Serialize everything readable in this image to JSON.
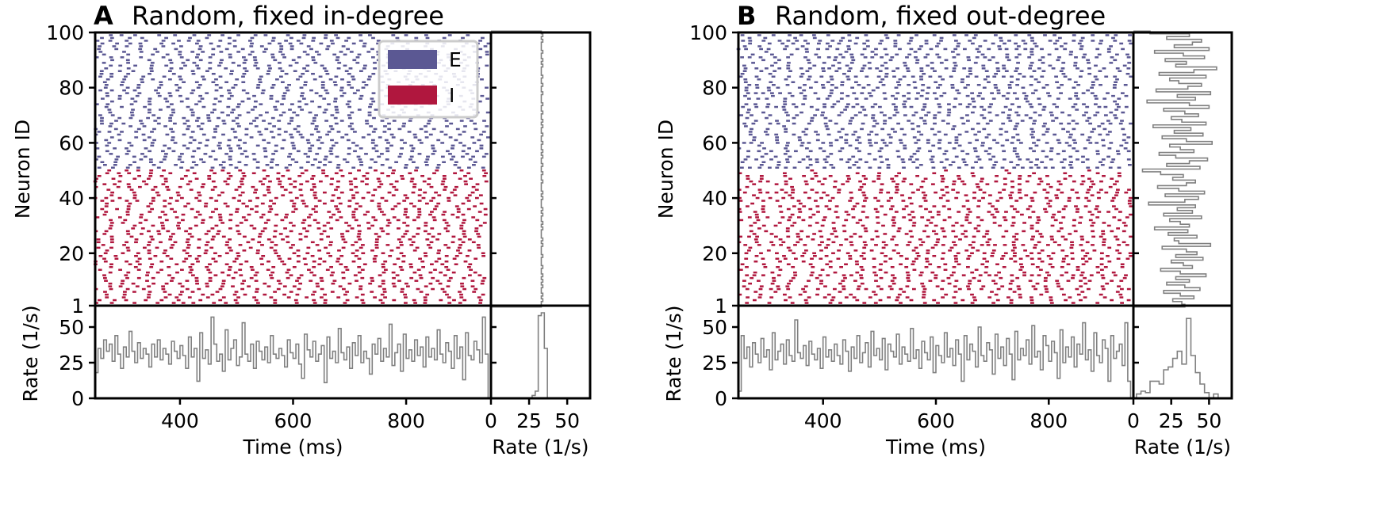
{
  "colors": {
    "E": "#5b5893",
    "I": "#b0173e",
    "hist": "#808080"
  },
  "chart_data": [
    {
      "type": "scatter",
      "letter": "A",
      "title": "Random, fixed in-degree",
      "raster": {
        "xlim": [
          250,
          950
        ],
        "ylim": [
          1,
          100
        ],
        "xticks": [
          "400",
          "600",
          "800"
        ],
        "yticks": [
          "1",
          "20",
          "40",
          "60",
          "80",
          "100"
        ],
        "ylabel": "Neuron ID",
        "populations": [
          {
            "name": "E",
            "neurons": [
              51,
              100
            ]
          },
          {
            "name": "I",
            "neurons": [
              1,
              50
            ]
          }
        ],
        "legend": {
          "entries": [
            "E",
            "I"
          ],
          "placement": "upper-right"
        },
        "marker": "square"
      },
      "rate_by_neuron": {
        "xlim": [
          0,
          65
        ],
        "xticks": [
          "0",
          "25",
          "50"
        ],
        "xlabel": "Rate (1/s)",
        "values": [
          33,
          33,
          34,
          33,
          34,
          33,
          33,
          34,
          33,
          34,
          33,
          34,
          33,
          33,
          34,
          33,
          33,
          33,
          34,
          33,
          33,
          33,
          34,
          33,
          34,
          33,
          33,
          33,
          34,
          33,
          34,
          33,
          33,
          34,
          33,
          34,
          33,
          33,
          33,
          34,
          33,
          34,
          33,
          33,
          33,
          34,
          33,
          33,
          34,
          33,
          33,
          34,
          33,
          33,
          34,
          33,
          34,
          33,
          33,
          34,
          33,
          33,
          34,
          33,
          33,
          34,
          33,
          34,
          33,
          33,
          34,
          33,
          33,
          34,
          33,
          33,
          33,
          34,
          33,
          33,
          34,
          33,
          33,
          34,
          33,
          33,
          33,
          34,
          33,
          34,
          33,
          33,
          34,
          33,
          33,
          33,
          34,
          33,
          34,
          33
        ]
      },
      "rate_over_time": {
        "xlim": [
          250,
          950
        ],
        "ylim": [
          0,
          65
        ],
        "yticks": [
          "0",
          "25",
          "50"
        ],
        "xticks": [
          "400",
          "600",
          "800"
        ],
        "xlabel": "Time (ms)",
        "ylabel": "Rate (1/s)",
        "bin_ms": 5,
        "values": [
          18,
          35,
          28,
          41,
          33,
          38,
          26,
          44,
          31,
          21,
          36,
          29,
          47,
          33,
          25,
          39,
          28,
          35,
          31,
          22,
          38,
          29,
          41,
          27,
          35,
          31,
          24,
          40,
          33,
          28,
          37,
          30,
          21,
          43,
          29,
          35,
          12,
          46,
          28,
          34,
          24,
          57,
          38,
          26,
          31,
          19,
          48,
          27,
          35,
          41,
          23,
          29,
          53,
          31,
          26,
          38,
          21,
          40,
          33,
          27,
          36,
          25,
          44,
          31,
          28,
          35,
          30,
          22,
          41,
          32,
          28,
          38,
          24,
          14,
          45,
          34,
          29,
          40,
          26,
          31,
          37,
          11,
          43,
          28,
          33,
          25,
          49,
          32,
          27,
          36,
          21,
          39,
          30,
          44,
          25,
          33,
          28,
          17,
          38,
          31,
          42,
          26,
          35,
          29,
          52,
          23,
          32,
          38,
          19,
          45,
          28,
          34,
          26,
          41,
          30,
          36,
          22,
          43,
          29,
          35,
          27,
          48,
          31,
          25,
          39,
          33,
          21,
          44,
          28,
          36,
          13,
          46,
          30,
          27,
          40,
          34,
          25,
          57,
          31
        ]
      },
      "rate_distribution": {
        "xlim": [
          0,
          65
        ],
        "ylim": [
          0,
          65
        ],
        "xticks": [
          "0",
          "25",
          "50"
        ],
        "xlabel": "Rate (1/s)",
        "bins": [
          27,
          29,
          31,
          33,
          35,
          37
        ],
        "counts": [
          2,
          5,
          58,
          60,
          35,
          0
        ]
      }
    },
    {
      "type": "scatter",
      "letter": "B",
      "title": "Random, fixed out-degree",
      "raster": {
        "xlim": [
          250,
          950
        ],
        "ylim": [
          1,
          100
        ],
        "xticks": [
          "400",
          "600",
          "800"
        ],
        "yticks": [
          "1",
          "20",
          "40",
          "60",
          "80",
          "100"
        ],
        "ylabel": "Neuron ID",
        "populations": [
          {
            "name": "E",
            "neurons": [
              51,
              100
            ]
          },
          {
            "name": "I",
            "neurons": [
              1,
              50
            ]
          }
        ],
        "marker": "square"
      },
      "rate_by_neuron": {
        "xlim": [
          0,
          65
        ],
        "xticks": [
          "0",
          "25",
          "50"
        ],
        "xlabel": "Rate (1/s)",
        "values": [
          34,
          32,
          26,
          40,
          31,
          20,
          44,
          34,
          22,
          37,
          28,
          48,
          31,
          18,
          39,
          33,
          25,
          46,
          28,
          42,
          35,
          19,
          51,
          30,
          27,
          42,
          23,
          36,
          14,
          37,
          31,
          24,
          45,
          20,
          39,
          29,
          41,
          10,
          34,
          43,
          21,
          47,
          30,
          16,
          35,
          41,
          26,
          33,
          18,
          6,
          44,
          22,
          37,
          49,
          28,
          17,
          40,
          31,
          24,
          52,
          35,
          19,
          46,
          27,
          38,
          13,
          48,
          32,
          25,
          43,
          34,
          20,
          50,
          37,
          9,
          41,
          29,
          51,
          15,
          36,
          45,
          30,
          24,
          48,
          17,
          40,
          55,
          28,
          35,
          21,
          47,
          33,
          14,
          50,
          27,
          39,
          45,
          22,
          37,
          11
        ]
      },
      "rate_over_time": {
        "xlim": [
          250,
          950
        ],
        "ylim": [
          0,
          65
        ],
        "yticks": [
          "0",
          "25",
          "50"
        ],
        "xticks": [
          "400",
          "600",
          "800"
        ],
        "xlabel": "Time (ms)",
        "ylabel": "Rate (1/s)",
        "bin_ms": 5,
        "values": [
          5,
          44,
          28,
          36,
          22,
          39,
          31,
          25,
          42,
          29,
          34,
          20,
          46,
          27,
          33,
          38,
          24,
          41,
          30,
          26,
          55,
          32,
          28,
          37,
          23,
          40,
          31,
          27,
          35,
          21,
          43,
          29,
          34,
          26,
          38,
          30,
          24,
          41,
          33,
          19,
          36,
          28,
          44,
          25,
          32,
          39,
          22,
          47,
          30,
          35,
          27,
          42,
          20,
          38,
          33,
          29,
          45,
          24,
          36,
          31,
          26,
          49,
          28,
          34,
          21,
          40,
          32,
          27,
          43,
          18,
          37,
          30,
          25,
          46,
          29,
          35,
          23,
          41,
          31,
          12,
          44,
          27,
          38,
          33,
          22,
          50,
          30,
          26,
          39,
          34,
          17,
          45,
          28,
          36,
          23,
          42,
          31,
          13,
          47,
          27,
          35,
          30,
          41,
          24,
          51,
          29,
          33,
          20,
          44,
          37,
          26,
          40,
          32,
          14,
          48,
          25,
          36,
          29,
          43,
          22,
          38,
          31,
          53,
          27,
          34,
          19,
          46,
          30,
          25,
          41,
          35,
          12,
          44,
          28,
          33,
          38,
          23,
          53,
          12
        ]
      },
      "rate_distribution": {
        "xlim": [
          0,
          65
        ],
        "ylim": [
          0,
          65
        ],
        "xticks": [
          "0",
          "25",
          "50"
        ],
        "xlabel": "Rate (1/s)",
        "bins": [
          2,
          5,
          8,
          11,
          14,
          17,
          20,
          23,
          26,
          29,
          32,
          35,
          38,
          41,
          44,
          47,
          50,
          53
        ],
        "counts": [
          3,
          5,
          4,
          12,
          12,
          10,
          20,
          22,
          28,
          33,
          24,
          56,
          30,
          18,
          10,
          4,
          0,
          3
        ]
      }
    }
  ]
}
